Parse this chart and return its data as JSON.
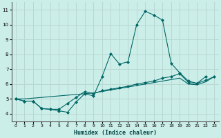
{
  "title": "",
  "xlabel": "Humidex (Indice chaleur)",
  "background_color": "#cceee8",
  "grid_color": "#b8d8d2",
  "line_color": "#006666",
  "xlim": [
    -0.5,
    23.5
  ],
  "ylim": [
    3.5,
    11.5
  ],
  "xticks": [
    0,
    1,
    2,
    3,
    4,
    5,
    6,
    7,
    8,
    9,
    10,
    11,
    12,
    13,
    14,
    15,
    16,
    17,
    18,
    19,
    20,
    21,
    22,
    23
  ],
  "yticks": [
    4,
    5,
    6,
    7,
    8,
    9,
    10,
    11
  ],
  "x": [
    0,
    1,
    2,
    3,
    4,
    5,
    6,
    7,
    8,
    9,
    10,
    11,
    12,
    13,
    14,
    15,
    16,
    17,
    18,
    19,
    20,
    21,
    22,
    23
  ],
  "line1_x": [
    0,
    1,
    2,
    3,
    4,
    5,
    6,
    7,
    8,
    9,
    10,
    11,
    12,
    13,
    14,
    15,
    16,
    17,
    18,
    19,
    20,
    21,
    22
  ],
  "line1_y": [
    5.0,
    4.85,
    4.85,
    4.35,
    4.3,
    4.2,
    4.1,
    4.8,
    5.35,
    5.2,
    6.5,
    8.05,
    7.35,
    7.5,
    10.0,
    10.9,
    10.65,
    10.3,
    7.4,
    6.75,
    6.2,
    6.05,
    6.5
  ],
  "line2_x": [
    0,
    1,
    2,
    3,
    4,
    5,
    6,
    7,
    8,
    9,
    10,
    11,
    12,
    13,
    14,
    15,
    16,
    17,
    18,
    19,
    20,
    21,
    22,
    23
  ],
  "line2_y": [
    5.0,
    4.85,
    4.85,
    4.35,
    4.3,
    4.3,
    4.7,
    5.1,
    5.5,
    5.35,
    5.55,
    5.65,
    5.75,
    5.85,
    6.0,
    6.1,
    6.2,
    6.4,
    6.5,
    6.7,
    6.1,
    6.05,
    6.25,
    6.5
  ],
  "line3_x": [
    0,
    1,
    2,
    3,
    4,
    5,
    6,
    7,
    8,
    9,
    10,
    11,
    12,
    13,
    14,
    15,
    16,
    17,
    18,
    19,
    20,
    21,
    22,
    23
  ],
  "line3_y": [
    5.0,
    5.0,
    5.05,
    5.1,
    5.15,
    5.2,
    5.25,
    5.3,
    5.35,
    5.4,
    5.5,
    5.6,
    5.7,
    5.8,
    5.9,
    6.0,
    6.1,
    6.2,
    6.3,
    6.4,
    6.0,
    5.95,
    6.15,
    6.5
  ]
}
